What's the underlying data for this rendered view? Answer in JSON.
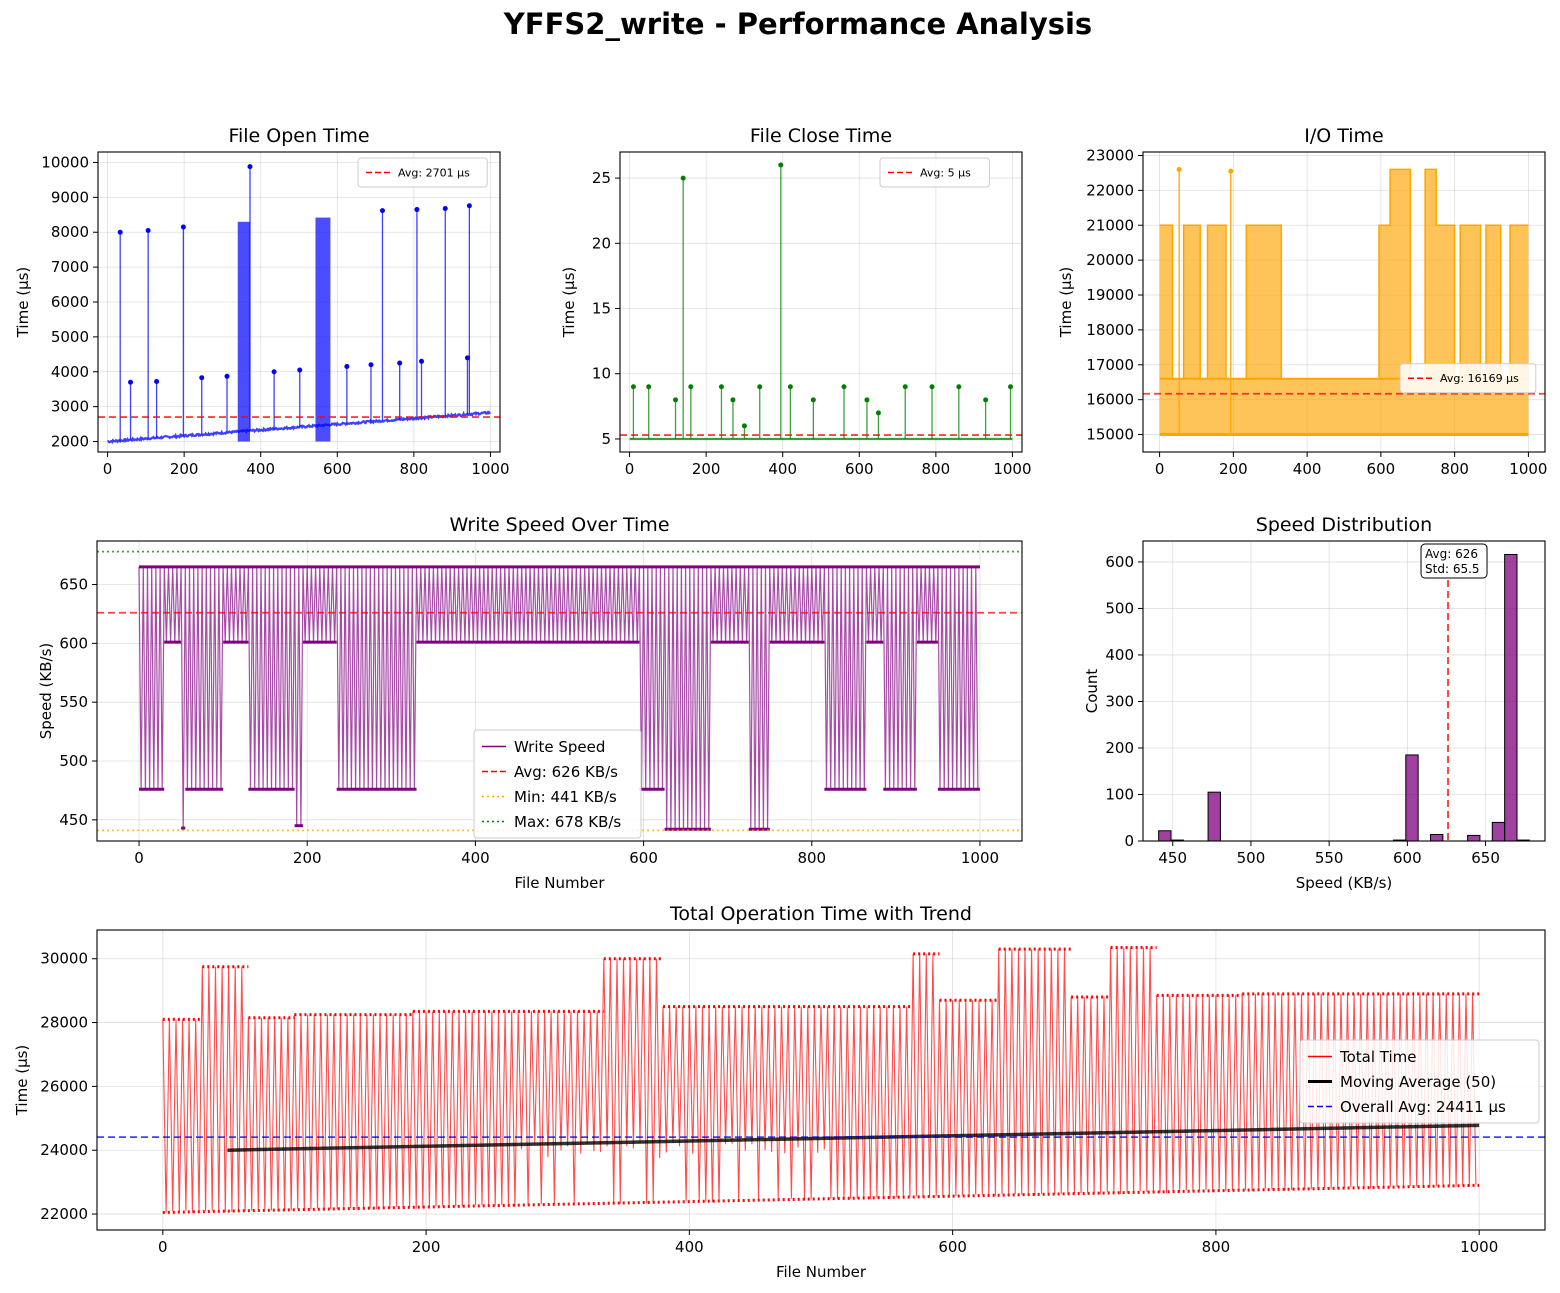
{
  "figure_title": "YFFS2_write - Performance Analysis",
  "chart_data": [
    {
      "id": "open",
      "type": "line",
      "title": "File Open Time",
      "xlabel": "",
      "ylabel": "Time (µs)",
      "xlim": [
        -25,
        1025
      ],
      "ylim": [
        1700,
        10300
      ],
      "xticks": [
        0,
        200,
        400,
        600,
        800,
        1000
      ],
      "yticks": [
        2000,
        3000,
        4000,
        5000,
        6000,
        7000,
        8000,
        9000,
        10000
      ],
      "grid": true,
      "color": "#0000ff",
      "baseline": [
        2000,
        2830
      ],
      "spikes": [
        {
          "x": 33,
          "y": 8000
        },
        {
          "x": 60,
          "y": 3700
        },
        {
          "x": 106,
          "y": 8050
        },
        {
          "x": 128,
          "y": 3720
        },
        {
          "x": 198,
          "y": 8150
        },
        {
          "x": 246,
          "y": 3830
        },
        {
          "x": 312,
          "y": 3870
        },
        {
          "x": 372,
          "y": 9880
        },
        {
          "x": 435,
          "y": 4000
        },
        {
          "x": 502,
          "y": 4050
        },
        {
          "x": 625,
          "y": 4150
        },
        {
          "x": 688,
          "y": 4200
        },
        {
          "x": 718,
          "y": 8620
        },
        {
          "x": 763,
          "y": 4250
        },
        {
          "x": 808,
          "y": 8650
        },
        {
          "x": 820,
          "y": 4300
        },
        {
          "x": 882,
          "y": 8680
        },
        {
          "x": 940,
          "y": 4400
        },
        {
          "x": 945,
          "y": 8760
        }
      ],
      "blocks": [
        {
          "x0": 340,
          "x1": 372,
          "y": 8300
        },
        {
          "x0": 543,
          "x1": 582,
          "y": 8420
        }
      ],
      "avg_line": {
        "value": 2701,
        "color": "#ff0000",
        "label": "Avg: 2701 µs"
      },
      "legend_position": "upper right"
    },
    {
      "id": "close",
      "type": "line",
      "title": "File Close Time",
      "xlabel": "",
      "ylabel": "Time (µs)",
      "xlim": [
        -25,
        1025
      ],
      "ylim": [
        4,
        27
      ],
      "xticks": [
        0,
        200,
        400,
        600,
        800,
        1000
      ],
      "yticks": [
        5,
        10,
        15,
        20,
        25
      ],
      "grid": true,
      "color": "#008000",
      "baseline": [
        5,
        5
      ],
      "spikes": [
        {
          "x": 140,
          "y": 25
        },
        {
          "x": 395,
          "y": 26
        },
        {
          "x": 10,
          "y": 9
        },
        {
          "x": 50,
          "y": 9
        },
        {
          "x": 120,
          "y": 8
        },
        {
          "x": 160,
          "y": 9
        },
        {
          "x": 240,
          "y": 9
        },
        {
          "x": 270,
          "y": 8
        },
        {
          "x": 340,
          "y": 9
        },
        {
          "x": 420,
          "y": 9
        },
        {
          "x": 480,
          "y": 8
        },
        {
          "x": 560,
          "y": 9
        },
        {
          "x": 620,
          "y": 8
        },
        {
          "x": 720,
          "y": 9
        },
        {
          "x": 790,
          "y": 9
        },
        {
          "x": 860,
          "y": 9
        },
        {
          "x": 930,
          "y": 8
        },
        {
          "x": 995,
          "y": 9
        },
        {
          "x": 300,
          "y": 6
        },
        {
          "x": 650,
          "y": 7
        }
      ],
      "blocks": [],
      "avg_line": {
        "value": 5.3,
        "color": "#ff0000",
        "label": "Avg: 5 µs"
      },
      "legend_position": "upper right"
    },
    {
      "id": "io",
      "type": "area",
      "title": "I/O Time",
      "xlabel": "",
      "ylabel": "Time (µs)",
      "xlim": [
        -45,
        1045
      ],
      "ylim": [
        14500,
        23100
      ],
      "xticks": [
        0,
        200,
        400,
        600,
        800,
        1000
      ],
      "yticks": [
        15000,
        16000,
        17000,
        18000,
        19000,
        20000,
        21000,
        22000,
        23000
      ],
      "grid": true,
      "color": "#ffa500",
      "base": 15000,
      "low": 16600,
      "segments": [
        {
          "x0": 0,
          "x1": 35,
          "y": 21000
        },
        {
          "x0": 35,
          "x1": 65,
          "y": 16600
        },
        {
          "x0": 65,
          "x1": 110,
          "y": 21000
        },
        {
          "x0": 110,
          "x1": 130,
          "y": 16600
        },
        {
          "x0": 130,
          "x1": 180,
          "y": 21000
        },
        {
          "x0": 180,
          "x1": 200,
          "y": 16600
        },
        {
          "x0": 200,
          "x1": 235,
          "y": 16600
        },
        {
          "x0": 235,
          "x1": 330,
          "y": 21000
        },
        {
          "x0": 330,
          "x1": 595,
          "y": 16600
        },
        {
          "x0": 595,
          "x1": 625,
          "y": 21000
        },
        {
          "x0": 625,
          "x1": 680,
          "y": 22600
        },
        {
          "x0": 680,
          "x1": 720,
          "y": 16600
        },
        {
          "x0": 720,
          "x1": 750,
          "y": 22600
        },
        {
          "x0": 750,
          "x1": 800,
          "y": 21000
        },
        {
          "x0": 800,
          "x1": 815,
          "y": 16600
        },
        {
          "x0": 815,
          "x1": 870,
          "y": 21000
        },
        {
          "x0": 870,
          "x1": 885,
          "y": 16600
        },
        {
          "x0": 885,
          "x1": 925,
          "y": 21000
        },
        {
          "x0": 925,
          "x1": 950,
          "y": 16600
        },
        {
          "x0": 950,
          "x1": 1000,
          "y": 21000
        }
      ],
      "spikes": [
        {
          "x": 53,
          "y": 22600
        },
        {
          "x": 193,
          "y": 22550
        }
      ],
      "avg_line": {
        "value": 16169,
        "color": "#ff0000",
        "label": "Avg: 16169 µs"
      },
      "legend_position": "center right"
    },
    {
      "id": "speed",
      "type": "line",
      "title": "Write Speed Over Time",
      "xlabel": "File Number",
      "ylabel": "Speed (KB/s)",
      "xlim": [
        -50,
        1050
      ],
      "ylim": [
        432,
        687
      ],
      "xticks": [
        0,
        200,
        400,
        600,
        800,
        1000
      ],
      "yticks": [
        450,
        500,
        550,
        600,
        650
      ],
      "grid": true,
      "color": "#800080",
      "high": 665,
      "segments": [
        {
          "x0": 0,
          "x1": 30,
          "y": 476
        },
        {
          "x0": 30,
          "x1": 50,
          "y": 601
        },
        {
          "x0": 50,
          "x1": 55,
          "y": 443
        },
        {
          "x0": 55,
          "x1": 100,
          "y": 476
        },
        {
          "x0": 100,
          "x1": 130,
          "y": 601
        },
        {
          "x0": 130,
          "x1": 185,
          "y": 476
        },
        {
          "x0": 185,
          "x1": 195,
          "y": 445
        },
        {
          "x0": 195,
          "x1": 235,
          "y": 601
        },
        {
          "x0": 235,
          "x1": 330,
          "y": 476
        },
        {
          "x0": 330,
          "x1": 595,
          "y": 601
        },
        {
          "x0": 595,
          "x1": 625,
          "y": 476
        },
        {
          "x0": 625,
          "x1": 680,
          "y": 442
        },
        {
          "x0": 680,
          "x1": 725,
          "y": 601
        },
        {
          "x0": 725,
          "x1": 750,
          "y": 442
        },
        {
          "x0": 750,
          "x1": 815,
          "y": 601
        },
        {
          "x0": 815,
          "x1": 865,
          "y": 476
        },
        {
          "x0": 865,
          "x1": 885,
          "y": 601
        },
        {
          "x0": 885,
          "x1": 925,
          "y": 476
        },
        {
          "x0": 925,
          "x1": 950,
          "y": 601
        },
        {
          "x0": 950,
          "x1": 1000,
          "y": 476
        }
      ],
      "avg_line": {
        "value": 626,
        "color": "#ff0000",
        "label": "Avg: 626 KB/s"
      },
      "min_line": {
        "value": 441,
        "color": "#ffa500",
        "label": "Min: 441 KB/s"
      },
      "max_line": {
        "value": 678,
        "color": "#008000",
        "label": "Max: 678 KB/s"
      },
      "series_label": "Write Speed",
      "legend_position": "lower center"
    },
    {
      "id": "dist",
      "type": "bar",
      "title": "Speed Distribution",
      "xlabel": "Speed (KB/s)",
      "ylabel": "Count",
      "xlim": [
        431,
        688
      ],
      "ylim": [
        0,
        645
      ],
      "xticks": [
        450,
        500,
        550,
        600,
        650
      ],
      "yticks": [
        0,
        100,
        200,
        300,
        400,
        500,
        600
      ],
      "grid": true,
      "color": "#800080",
      "bin_edges": [
        441.0,
        448.9,
        456.8,
        464.7,
        472.6,
        480.5,
        488.4,
        496.3,
        504.2,
        512.1,
        520.0,
        527.9,
        535.8,
        543.7,
        551.6,
        559.5,
        567.4,
        575.3,
        583.2,
        591.1,
        599.0,
        606.9,
        614.8,
        622.7,
        630.6,
        638.5,
        646.4,
        654.3,
        662.2,
        670.1,
        678.0
      ],
      "counts": [
        22,
        2,
        0,
        0,
        105,
        0,
        0,
        0,
        0,
        0,
        0,
        0,
        0,
        0,
        0,
        0,
        0,
        0,
        0,
        2,
        185,
        0,
        14,
        0,
        0,
        12,
        0,
        40,
        616,
        2
      ],
      "avg_line": {
        "value": 626,
        "color": "#ff0000"
      },
      "annotation": {
        "line1": "Avg: 626",
        "line2": "Std: 65.5"
      }
    },
    {
      "id": "total",
      "type": "line",
      "title": "Total Operation Time with Trend",
      "xlabel": "File Number",
      "ylabel": "Time (µs)",
      "xlim": [
        -50,
        1050
      ],
      "ylim": [
        21500,
        30900
      ],
      "xticks": [
        0,
        200,
        400,
        600,
        800,
        1000
      ],
      "yticks": [
        22000,
        24000,
        26000,
        28000,
        30000
      ],
      "grid": true,
      "color": "#ff0000",
      "low_start": 22050,
      "low_end": 22900,
      "segments": [
        {
          "x0": 0,
          "x1": 30,
          "y": 28100
        },
        {
          "x0": 30,
          "x1": 65,
          "y": 29750
        },
        {
          "x0": 65,
          "x1": 100,
          "y": 28150
        },
        {
          "x0": 100,
          "x1": 190,
          "y": 28250
        },
        {
          "x0": 190,
          "x1": 335,
          "y": 28350
        },
        {
          "x0": 335,
          "x1": 380,
          "y": 30000
        },
        {
          "x0": 380,
          "x1": 570,
          "y": 28500
        },
        {
          "x0": 570,
          "x1": 590,
          "y": 30150
        },
        {
          "x0": 590,
          "x1": 635,
          "y": 28700
        },
        {
          "x0": 635,
          "x1": 690,
          "y": 30300
        },
        {
          "x0": 690,
          "x1": 720,
          "y": 28800
        },
        {
          "x0": 720,
          "x1": 755,
          "y": 30350
        },
        {
          "x0": 755,
          "x1": 820,
          "y": 28850
        },
        {
          "x0": 820,
          "x1": 1000,
          "y": 28900
        }
      ],
      "mid_band": {
        "x0": 250,
        "x1": 505,
        "y": 24000
      },
      "moving_avg": {
        "start_x": 49,
        "start_y": 24000,
        "end_x": 1000,
        "end_y": 24780,
        "label": "Moving Average (50)"
      },
      "avg_line": {
        "value": 24411,
        "color": "#0000ff",
        "label": "Overall Avg: 24411 µs"
      },
      "series_label": "Total Time",
      "legend_position": "center right"
    }
  ]
}
